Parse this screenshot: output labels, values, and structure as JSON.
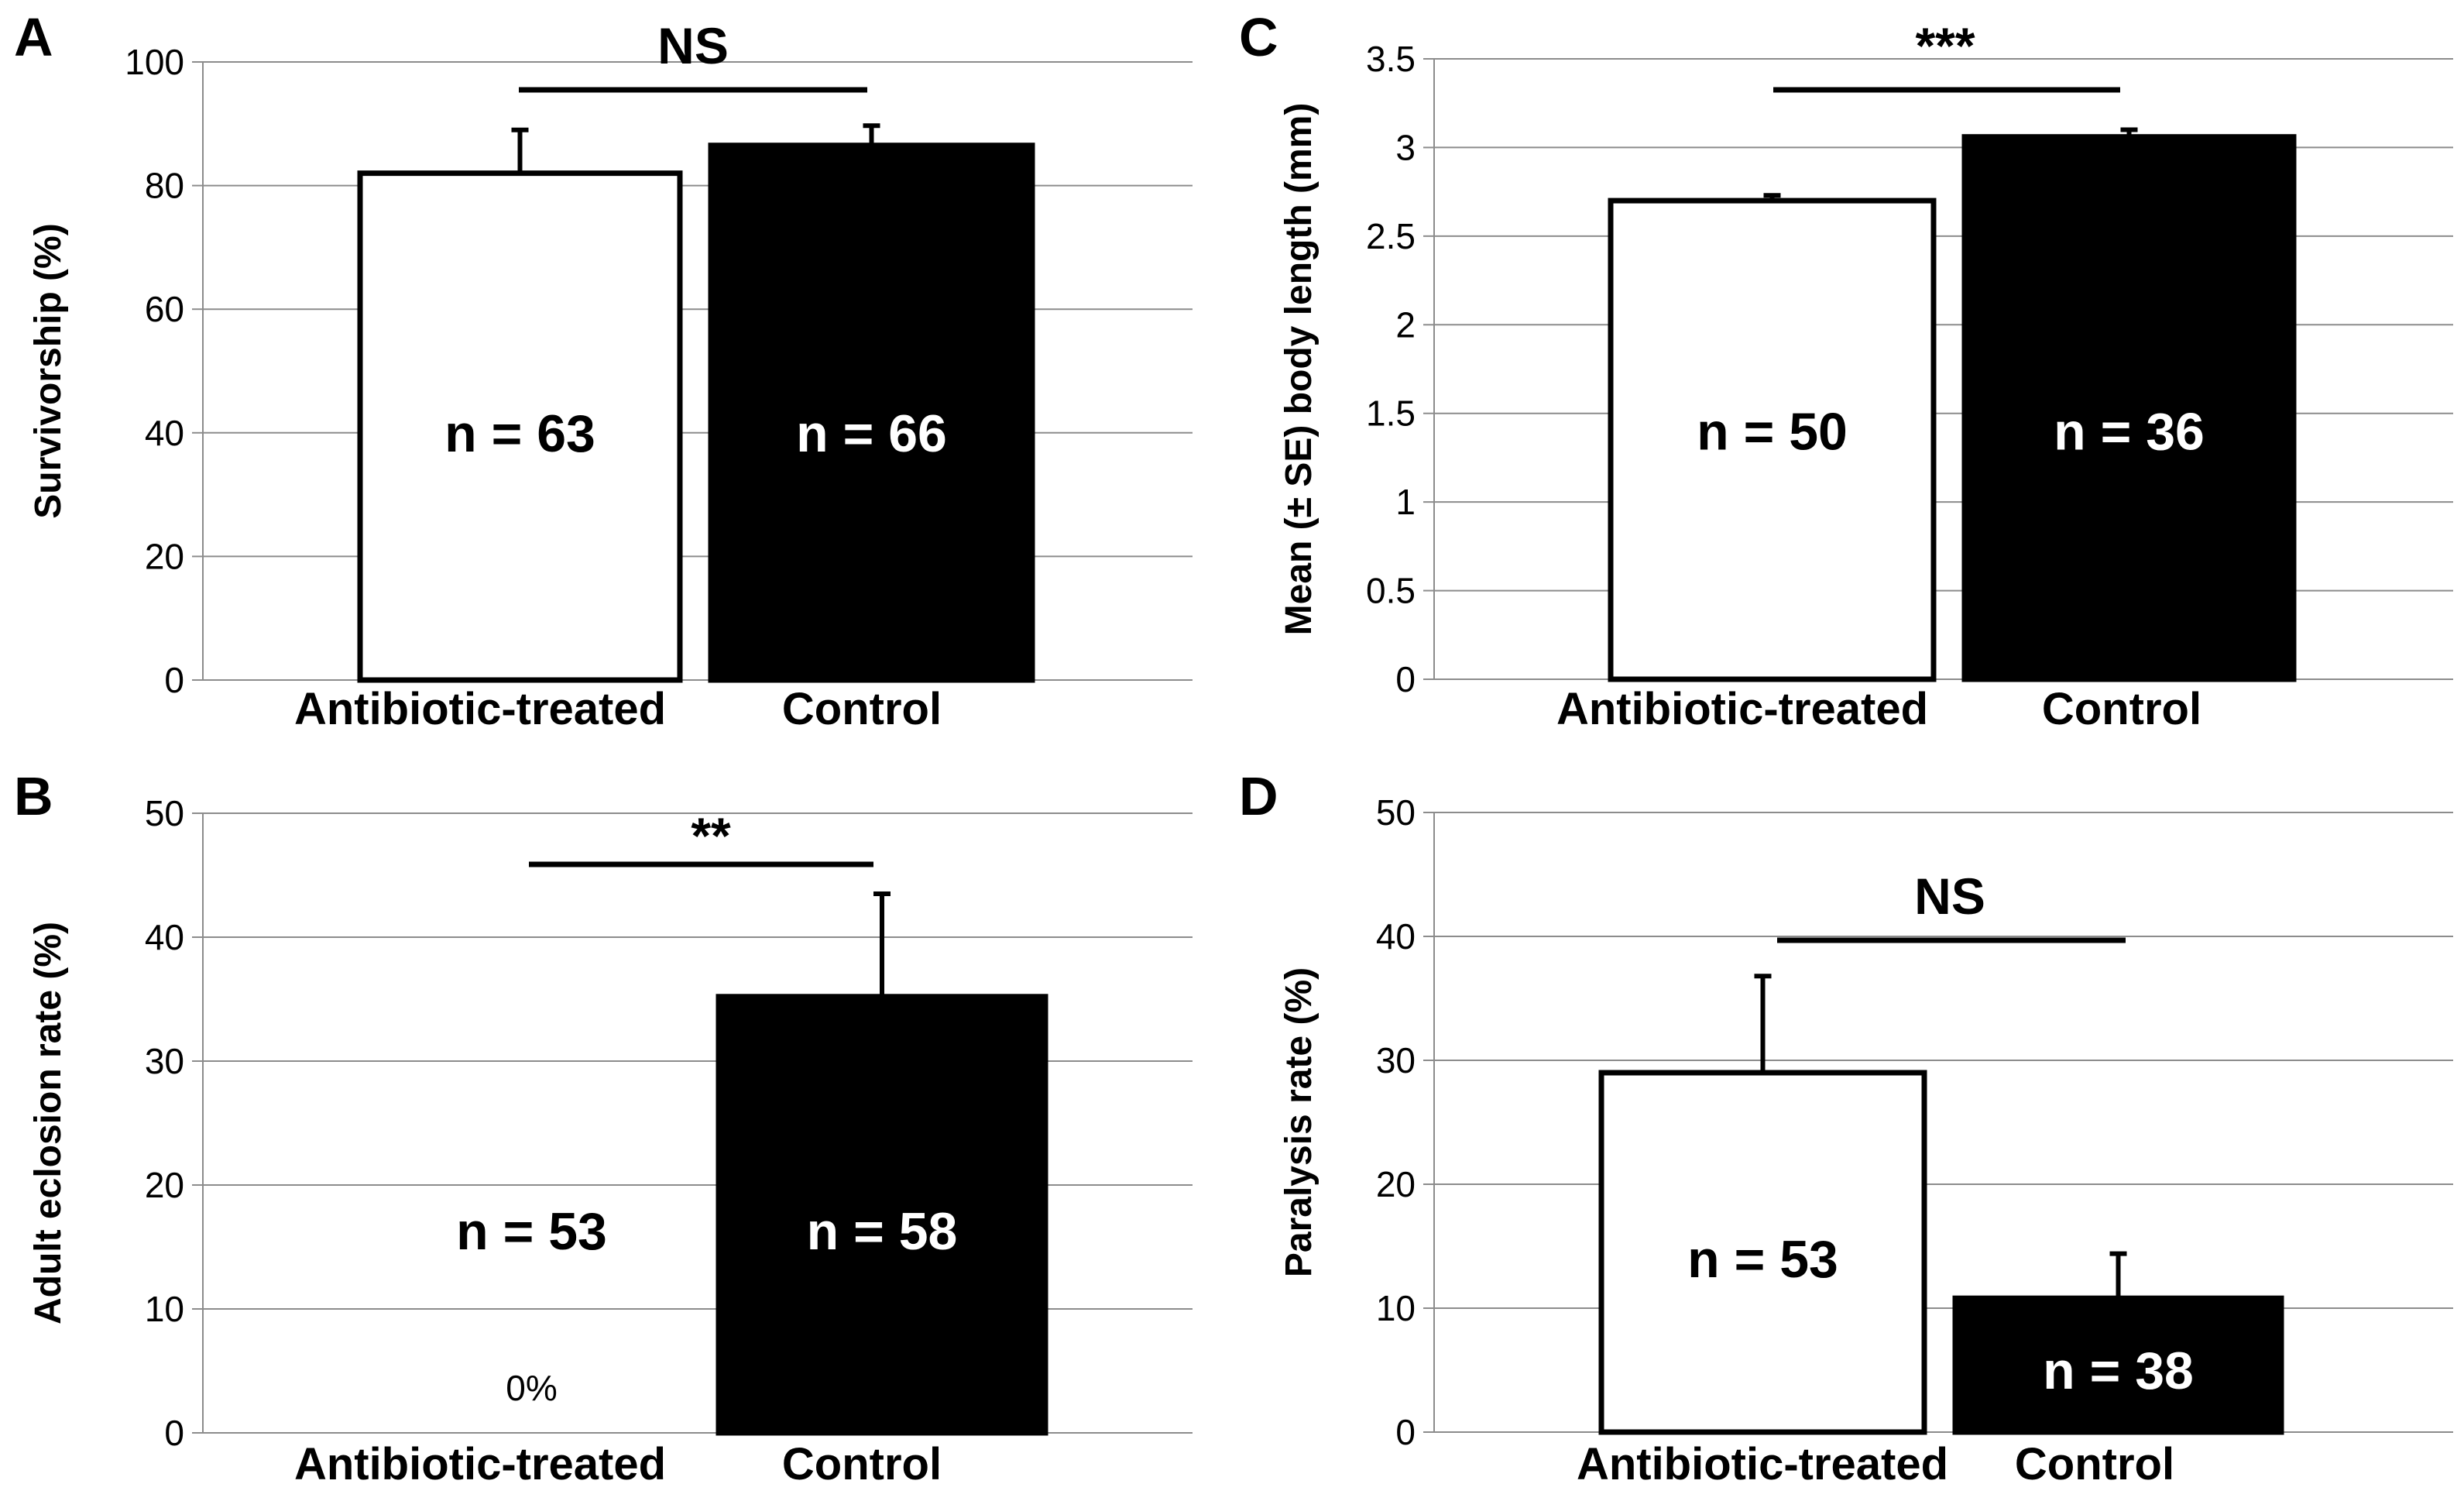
{
  "chart_data": [
    {
      "panel": "A",
      "type": "bar",
      "title": "",
      "xlabel": "",
      "ylabel": "Survivorship (%)",
      "ylim": [
        0,
        100
      ],
      "yticks": [
        "0",
        "20",
        "40",
        "60",
        "80",
        "100"
      ],
      "categories": [
        "Antibiotic-treated",
        "Control"
      ],
      "values": [
        82,
        86.5
      ],
      "errors": [
        7,
        3.2
      ],
      "bar_colors": [
        "#ffffff",
        "#000000"
      ],
      "n_labels": [
        "n = 63",
        "n = 66"
      ],
      "n_label_y": [
        40,
        40
      ],
      "significance": "NS",
      "bar_value_labels": [
        "",
        ""
      ]
    },
    {
      "panel": "B",
      "type": "bar",
      "title": "",
      "xlabel": "",
      "ylabel": "Adult eclosion rate (%)",
      "ylim": [
        0,
        50
      ],
      "yticks": [
        "0",
        "10",
        "20",
        "30",
        "40",
        "50"
      ],
      "categories": [
        "Antibiotic-treated",
        "Control"
      ],
      "values": [
        0,
        35.2
      ],
      "errors": [
        0,
        8.3
      ],
      "bar_colors": [
        "#ffffff",
        "#000000"
      ],
      "n_labels": [
        "n = 53",
        "n = 58"
      ],
      "n_label_y": [
        16.3,
        16.3
      ],
      "significance": "**",
      "bar_value_labels": [
        "0%",
        ""
      ]
    },
    {
      "panel": "C",
      "type": "bar",
      "title": "",
      "xlabel": "",
      "ylabel": "Mean (± SE) body length (mm)",
      "ylim": [
        0,
        3.5
      ],
      "yticks": [
        "0",
        "0.5",
        "1",
        "1.5",
        "2",
        "2.5",
        "3",
        "3.5"
      ],
      "categories": [
        "Antibiotic-treated",
        "Control"
      ],
      "values": [
        2.7,
        3.06
      ],
      "errors": [
        0.03,
        0.04
      ],
      "bar_colors": [
        "#ffffff",
        "#000000"
      ],
      "n_labels": [
        "n = 50",
        "n = 36"
      ],
      "n_label_y": [
        1.4,
        1.4
      ],
      "significance": "***",
      "bar_value_labels": [
        "",
        ""
      ]
    },
    {
      "panel": "D",
      "type": "bar",
      "title": "",
      "xlabel": "",
      "ylabel": "Paralysis rate (%)",
      "ylim": [
        0,
        50
      ],
      "yticks": [
        "0",
        "10",
        "20",
        "30",
        "40",
        "50"
      ],
      "categories": [
        "Antibiotic-treated",
        "Control"
      ],
      "values": [
        29,
        10.8
      ],
      "errors": [
        7.8,
        3.6
      ],
      "bar_colors": [
        "#ffffff",
        "#000000"
      ],
      "n_labels": [
        "n = 53",
        "n = 38"
      ],
      "n_label_y": [
        14,
        5
      ],
      "significance": "NS",
      "bar_value_labels": [
        "",
        ""
      ]
    }
  ]
}
